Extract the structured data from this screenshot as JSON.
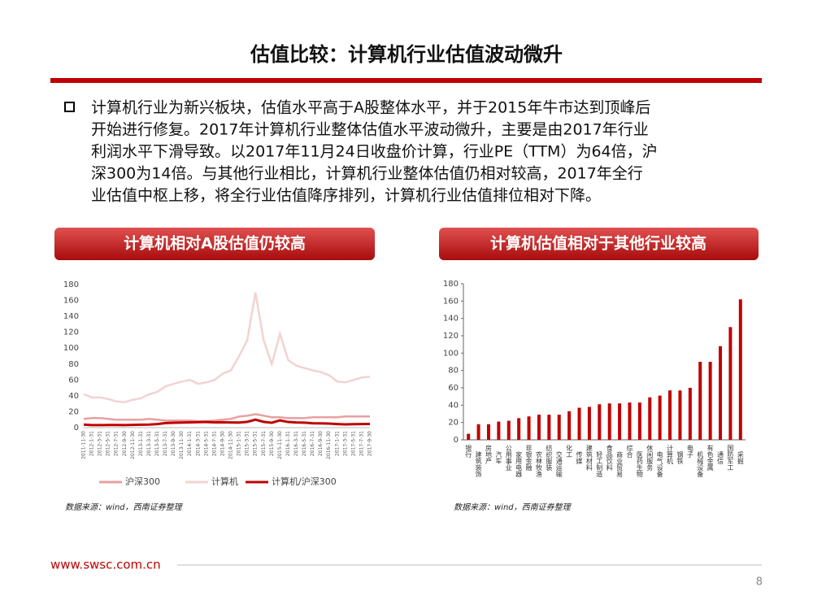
{
  "header": {
    "title": "估值比较：计算机行业估值波动微升"
  },
  "bullet": {
    "lines": [
      "计算机行业为新兴板块，估值水平高于A股整体水平，并于2015年牛市达到顶峰后",
      "开始进行修复。2017年计算机行业整体估值水平波动微升，主要是由2017年行业",
      "利润水平下滑导致。以2017年11月24日收盘价计算，行业PE（TTM）为64倍，沪",
      "深300为14倍。与其他行业相比，计算机行业整体估值仍相对较高，2017年全行",
      "业估值中枢上移，将全行业估值降序排列，计算机行业估值排位相对下降。"
    ]
  },
  "chart_data": [
    {
      "type": "line",
      "title": "计算机相对A股估值仍较高",
      "source": "数据来源：wind，西南证券整理",
      "categories": [
        "2011-11-30",
        "2012-1-31",
        "2012-3-31",
        "2012-5-31",
        "2012-7-31",
        "2012-9-30",
        "2012-11-30",
        "2013-1-31",
        "2013-3-31",
        "2013-5-31",
        "2013-7-31",
        "2013-9-30",
        "2013-11-30",
        "2014-1-31",
        "2014-3-31",
        "2014-5-31",
        "2014-7-31",
        "2014-9-30",
        "2014-11-30",
        "2015-1-31",
        "2015-3-31",
        "2015-5-31",
        "2015-7-31",
        "2015-9-30",
        "2015-11-30",
        "2016-1-31",
        "2016-3-31",
        "2016-5-31",
        "2016-7-31",
        "2016-9-30",
        "2016-11-30",
        "2017-1-31",
        "2017-3-31",
        "2017-5-31",
        "2017-7-31",
        "2017-9-30"
      ],
      "series": [
        {
          "name": "沪深300",
          "color": "#e8a0a0",
          "values": [
            11,
            12,
            12,
            11,
            10,
            10,
            10,
            10,
            11,
            10,
            9,
            9,
            9,
            9,
            8,
            8,
            9,
            10,
            11,
            14,
            15,
            17,
            15,
            13,
            13,
            12,
            12,
            12,
            13,
            13,
            13,
            13,
            14,
            14,
            14,
            14
          ]
        },
        {
          "name": "计算机",
          "color": "#f3d2d2",
          "values": [
            42,
            38,
            38,
            36,
            33,
            32,
            35,
            37,
            42,
            45,
            52,
            55,
            58,
            60,
            55,
            57,
            60,
            68,
            72,
            90,
            110,
            170,
            110,
            80,
            118,
            85,
            78,
            75,
            72,
            70,
            66,
            58,
            57,
            60,
            63,
            64
          ]
        },
        {
          "name": "计算机/沪深300",
          "color": "#c00000",
          "values": [
            3.8,
            3.2,
            3.2,
            3.3,
            3.3,
            3.2,
            3.5,
            3.7,
            3.8,
            4.5,
            5.8,
            6.1,
            6.4,
            6.7,
            6.9,
            7.1,
            6.7,
            6.8,
            6.5,
            6.4,
            7.3,
            10,
            7.3,
            6.2,
            9.1,
            7.1,
            6.5,
            6.3,
            5.5,
            5.4,
            5.1,
            4.5,
            4.1,
            4.3,
            4.5,
            4.6
          ]
        }
      ],
      "ylim": [
        0,
        180
      ],
      "yticks": [
        0,
        20,
        40,
        60,
        80,
        100,
        120,
        140,
        160,
        180
      ]
    },
    {
      "type": "bar",
      "title": "计算机估值相对于其他行业较高",
      "source": "数据来源：wind，西南证券整理",
      "categories": [
        "银行",
        "建筑装饰",
        "房地产",
        "汽车",
        "公用事业",
        "家用电器",
        "非银金融",
        "农林牧渔",
        "纺织服装",
        "交通运输",
        "化工",
        "传媒",
        "建筑材料",
        "轻工制造",
        "食品饮料",
        "商业贸易",
        "综合",
        "医药生物",
        "休闲服务",
        "电气设备",
        "计算机",
        "钢铁",
        "电子",
        "机械设备",
        "有色金属",
        "通信",
        "国防军工",
        "采掘"
      ],
      "values": [
        7,
        18,
        18,
        21,
        22,
        25,
        27,
        29,
        29,
        29,
        33,
        37,
        38,
        41,
        42,
        42,
        43,
        43,
        49,
        51,
        57,
        57,
        60,
        90,
        90,
        108,
        130,
        162
      ],
      "color": "#c00000",
      "ylim": [
        0,
        180
      ],
      "yticks": [
        0,
        20,
        40,
        60,
        80,
        100,
        120,
        140,
        160,
        180
      ]
    }
  ],
  "footer": {
    "url": "www.swsc.com.cn",
    "page": "8"
  }
}
